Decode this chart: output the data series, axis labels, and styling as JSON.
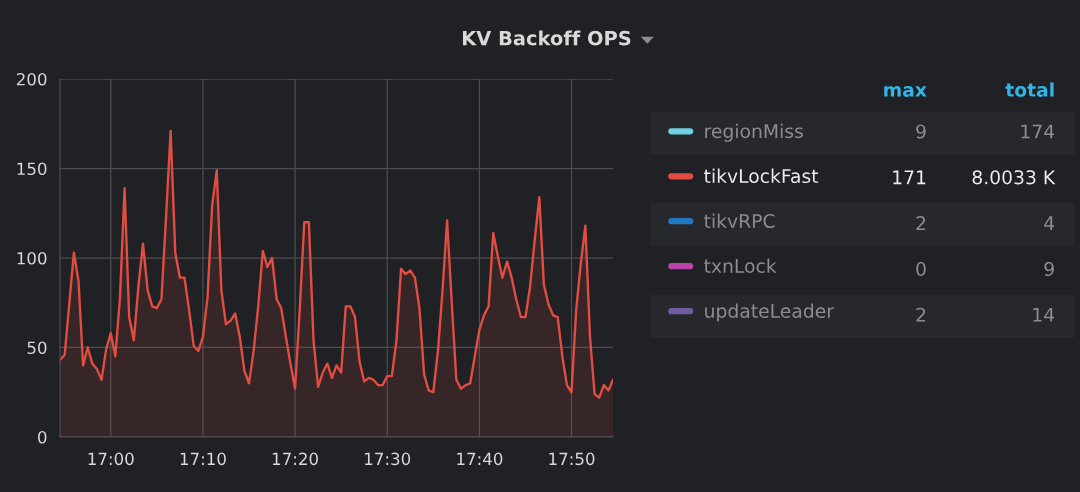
{
  "chart_data": {
    "type": "area",
    "title": "KV Backoff OPS",
    "x": [
      16.9083,
      16.9167,
      16.9333,
      16.9417,
      16.95,
      16.9583,
      16.9667,
      16.975,
      16.9833,
      16.9917,
      17,
      17.0083,
      17.0167,
      17.025,
      17.0333,
      17.0417,
      17.05,
      17.0583,
      17.0667,
      17.075,
      17.0833,
      17.0917,
      17.1,
      17.1083,
      17.1167,
      17.125,
      17.1333,
      17.1417,
      17.15,
      17.1583,
      17.1667,
      17.175,
      17.1833,
      17.1917,
      17.2,
      17.2083,
      17.2167,
      17.225,
      17.2333,
      17.2417,
      17.25,
      17.2583,
      17.2667,
      17.275,
      17.2833,
      17.2917,
      17.3,
      17.3083,
      17.3167,
      17.325,
      17.3333,
      17.3417,
      17.35,
      17.3583,
      17.3667,
      17.375,
      17.3833,
      17.3917,
      17.4,
      17.4083,
      17.4167,
      17.425,
      17.4333,
      17.4417,
      17.45,
      17.4583,
      17.4667,
      17.475,
      17.4833,
      17.4917,
      17.5,
      17.5083,
      17.5167,
      17.525,
      17.5333,
      17.5417,
      17.55,
      17.5583,
      17.5667,
      17.575,
      17.5833,
      17.5917,
      17.6,
      17.6083,
      17.6167,
      17.625,
      17.6333,
      17.6417,
      17.65,
      17.6583,
      17.6667,
      17.675,
      17.6833,
      17.6917,
      17.7,
      17.7083,
      17.7167,
      17.725,
      17.7333,
      17.7417,
      17.75,
      17.7583,
      17.7667,
      17.775,
      17.7833,
      17.7917,
      17.8,
      17.8083,
      17.8167,
      17.825,
      17.8333,
      17.8417,
      17.85,
      17.8583,
      17.8667,
      17.875,
      17.8833,
      17.8917,
      17.9,
      17.9083
    ],
    "series": [
      {
        "name": "regionMiss",
        "color": "#6ed0e0",
        "values": [
          null,
          null,
          null,
          null,
          null,
          null,
          null,
          null,
          null,
          null,
          null,
          null,
          null,
          null,
          null,
          null,
          null,
          null,
          null,
          null,
          null,
          null,
          null,
          null,
          null,
          null,
          null,
          null,
          null,
          null,
          null,
          null,
          null,
          null,
          null,
          null,
          null,
          null,
          null,
          null,
          null,
          null,
          null,
          null,
          null,
          null,
          null,
          null,
          null,
          null,
          null,
          null,
          null,
          null,
          null,
          null,
          null,
          null,
          null,
          null,
          null,
          null,
          null,
          null,
          null,
          null,
          null,
          null,
          null,
          null,
          null,
          null,
          null,
          null,
          null,
          null,
          null,
          null,
          null,
          null,
          null,
          null,
          null,
          null,
          null,
          null,
          null,
          null,
          null,
          null,
          null,
          null,
          null,
          null,
          null,
          null,
          null,
          null,
          null,
          null,
          null,
          null,
          null,
          null,
          null,
          null,
          null,
          null,
          null,
          null,
          null,
          null,
          null,
          null,
          null,
          null,
          null,
          null,
          null,
          null
        ]
      },
      {
        "name": "tikvLockFast",
        "color": "#e24d42",
        "values": [
          43,
          46,
          103,
          87,
          40,
          50,
          41,
          38,
          32,
          49,
          58,
          45,
          78,
          139,
          67,
          54,
          84,
          108,
          82,
          73,
          72,
          77,
          123,
          171,
          103,
          89,
          89,
          71,
          51,
          48,
          56,
          78,
          129,
          149,
          82,
          63,
          65,
          69,
          56,
          37,
          30,
          48,
          73,
          104,
          95,
          100,
          77,
          72,
          56,
          41,
          27,
          71,
          120,
          120,
          54,
          28,
          36,
          41,
          33,
          40,
          36,
          73,
          73,
          67,
          42,
          31,
          33,
          32,
          29,
          29,
          34,
          34,
          54,
          94,
          91,
          93,
          89,
          72,
          35,
          26,
          25,
          48,
          82,
          121,
          75,
          32,
          27,
          29,
          30,
          45,
          60,
          68,
          73,
          114,
          101,
          89,
          98,
          89,
          77,
          67,
          67,
          84,
          110,
          134,
          85,
          74,
          68,
          67,
          45,
          29,
          25,
          71,
          97,
          118,
          56,
          24,
          22,
          29,
          26,
          32
        ]
      },
      {
        "name": "tikvRPC",
        "color": "#1f78c1",
        "values": [
          null,
          null,
          null,
          null,
          null,
          null,
          null,
          null,
          null,
          null,
          null,
          null,
          null,
          null,
          null,
          null,
          null,
          null,
          null,
          null,
          null,
          null,
          null,
          null,
          null,
          null,
          null,
          null,
          null,
          null,
          null,
          null,
          null,
          null,
          null,
          null,
          null,
          null,
          null,
          null,
          null,
          null,
          null,
          null,
          null,
          null,
          null,
          null,
          null,
          null,
          null,
          null,
          null,
          null,
          null,
          null,
          null,
          null,
          null,
          null,
          null,
          null,
          null,
          null,
          null,
          null,
          null,
          null,
          null,
          null,
          null,
          null,
          null,
          null,
          null,
          null,
          null,
          null,
          null,
          null,
          null,
          null,
          null,
          null,
          null,
          null,
          null,
          null,
          null,
          null,
          null,
          null,
          null,
          null,
          null,
          null,
          null,
          null,
          null,
          null,
          null,
          null,
          null,
          null,
          null,
          null,
          null,
          null,
          null,
          null,
          null,
          null,
          null,
          null,
          null,
          null,
          null,
          null,
          null,
          null
        ]
      },
      {
        "name": "txnLock",
        "color": "#ba43a9",
        "values": [
          null,
          null,
          null,
          null,
          null,
          null,
          null,
          null,
          null,
          null,
          null,
          null,
          null,
          null,
          null,
          null,
          null,
          null,
          null,
          null,
          null,
          null,
          null,
          null,
          null,
          null,
          null,
          null,
          null,
          null,
          null,
          null,
          null,
          null,
          null,
          null,
          null,
          null,
          null,
          null,
          null,
          null,
          null,
          null,
          null,
          null,
          null,
          null,
          null,
          null,
          null,
          null,
          null,
          null,
          null,
          null,
          null,
          null,
          null,
          null,
          null,
          null,
          null,
          null,
          null,
          null,
          null,
          null,
          null,
          null,
          null,
          null,
          null,
          null,
          null,
          null,
          null,
          null,
          null,
          null,
          null,
          null,
          null,
          null,
          null,
          null,
          null,
          null,
          null,
          null,
          null,
          null,
          null,
          null,
          null,
          null,
          null,
          null,
          null,
          null,
          null,
          null,
          null,
          null,
          null,
          null,
          null,
          null,
          null,
          null,
          null,
          null,
          null,
          null,
          null,
          null,
          null,
          null,
          null,
          null
        ]
      },
      {
        "name": "updateLeader",
        "color": "#705da0",
        "values": [
          null,
          null,
          null,
          null,
          null,
          null,
          null,
          null,
          null,
          null,
          null,
          null,
          null,
          null,
          null,
          null,
          null,
          null,
          null,
          null,
          null,
          null,
          null,
          null,
          null,
          null,
          null,
          null,
          null,
          null,
          null,
          null,
          null,
          null,
          null,
          null,
          null,
          null,
          null,
          null,
          null,
          null,
          null,
          null,
          null,
          null,
          null,
          null,
          null,
          null,
          null,
          null,
          null,
          null,
          null,
          null,
          null,
          null,
          null,
          null,
          null,
          null,
          null,
          null,
          null,
          null,
          null,
          null,
          null,
          null,
          null,
          null,
          null,
          null,
          null,
          null,
          null,
          null,
          null,
          null,
          null,
          null,
          null,
          null,
          null,
          null,
          null,
          null,
          null,
          null,
          null,
          null,
          null,
          null,
          null,
          null,
          null,
          null,
          null,
          null,
          null,
          null,
          null,
          null,
          null,
          null,
          null,
          null,
          null,
          null,
          null,
          null,
          null,
          null,
          null,
          null,
          null,
          null,
          null,
          null
        ]
      }
    ],
    "xlim": [
      16.9083,
      17.9083
    ],
    "xticks": [
      {
        "value": 17,
        "label": "17:00"
      },
      {
        "value": 17.1667,
        "label": "17:10"
      },
      {
        "value": 17.3333,
        "label": "17:20"
      },
      {
        "value": 17.5,
        "label": "17:30"
      },
      {
        "value": 17.6667,
        "label": "17:40"
      },
      {
        "value": 17.8333,
        "label": "17:50"
      }
    ],
    "ylim": [
      0,
      200
    ],
    "yticks": [
      0,
      50,
      100,
      150,
      200
    ],
    "grid": true,
    "legend": "right",
    "annotations": [
      "max",
      "total",
      "9",
      "174",
      "171",
      "8.0033 K",
      "2",
      "4",
      "0",
      "9",
      "2",
      "14"
    ]
  }
}
